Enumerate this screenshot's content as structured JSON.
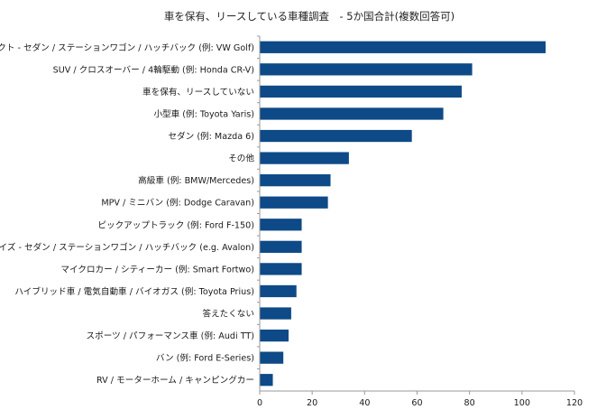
{
  "chart_data": {
    "type": "bar",
    "orientation": "horizontal",
    "title": "車を保有、リースしている車種調査　- 5か国合計(複数回答可)",
    "xlabel": "",
    "ylabel": "",
    "xlim": [
      0,
      120
    ],
    "x_ticks": [
      "0",
      "20",
      "40",
      "60",
      "80",
      "100",
      "120"
    ],
    "grid": false,
    "legend": "none",
    "bar_color": "#0d4a87",
    "categories": [
      "コンパクト - セダン / ステーションワゴン / ハッチバック (例: VW Golf)",
      "SUV / クロスオーバー / 4輪駆動 (例: Honda CR-V)",
      "車を保有、リースしていない",
      "小型車 (例: Toyota Yaris)",
      "セダン (例: Mazda 6)",
      "その他",
      "高級車 (例: BMW/Mercedes)",
      "MPV / ミニバン (例: Dodge Caravan)",
      "ピックアップトラック (例: Ford F-150)",
      "フルサイズ - セダン / ステーションワゴン / ハッチバック (e.g. Avalon)",
      "マイクロカー / シティーカー (例: Smart Fortwo)",
      "ハイブリッド車 / 電気自動車 / バイオガス (例: Toyota Prius)",
      "答えたくない",
      "スポーツ / パフォーマンス車 (例: Audi TT)",
      "バン (例: Ford E-Series)",
      "RV / モーターホーム / キャンピングカー"
    ],
    "values": [
      109,
      81,
      77,
      70,
      58,
      34,
      27,
      26,
      16,
      16,
      16,
      14,
      12,
      11,
      9,
      5
    ]
  }
}
